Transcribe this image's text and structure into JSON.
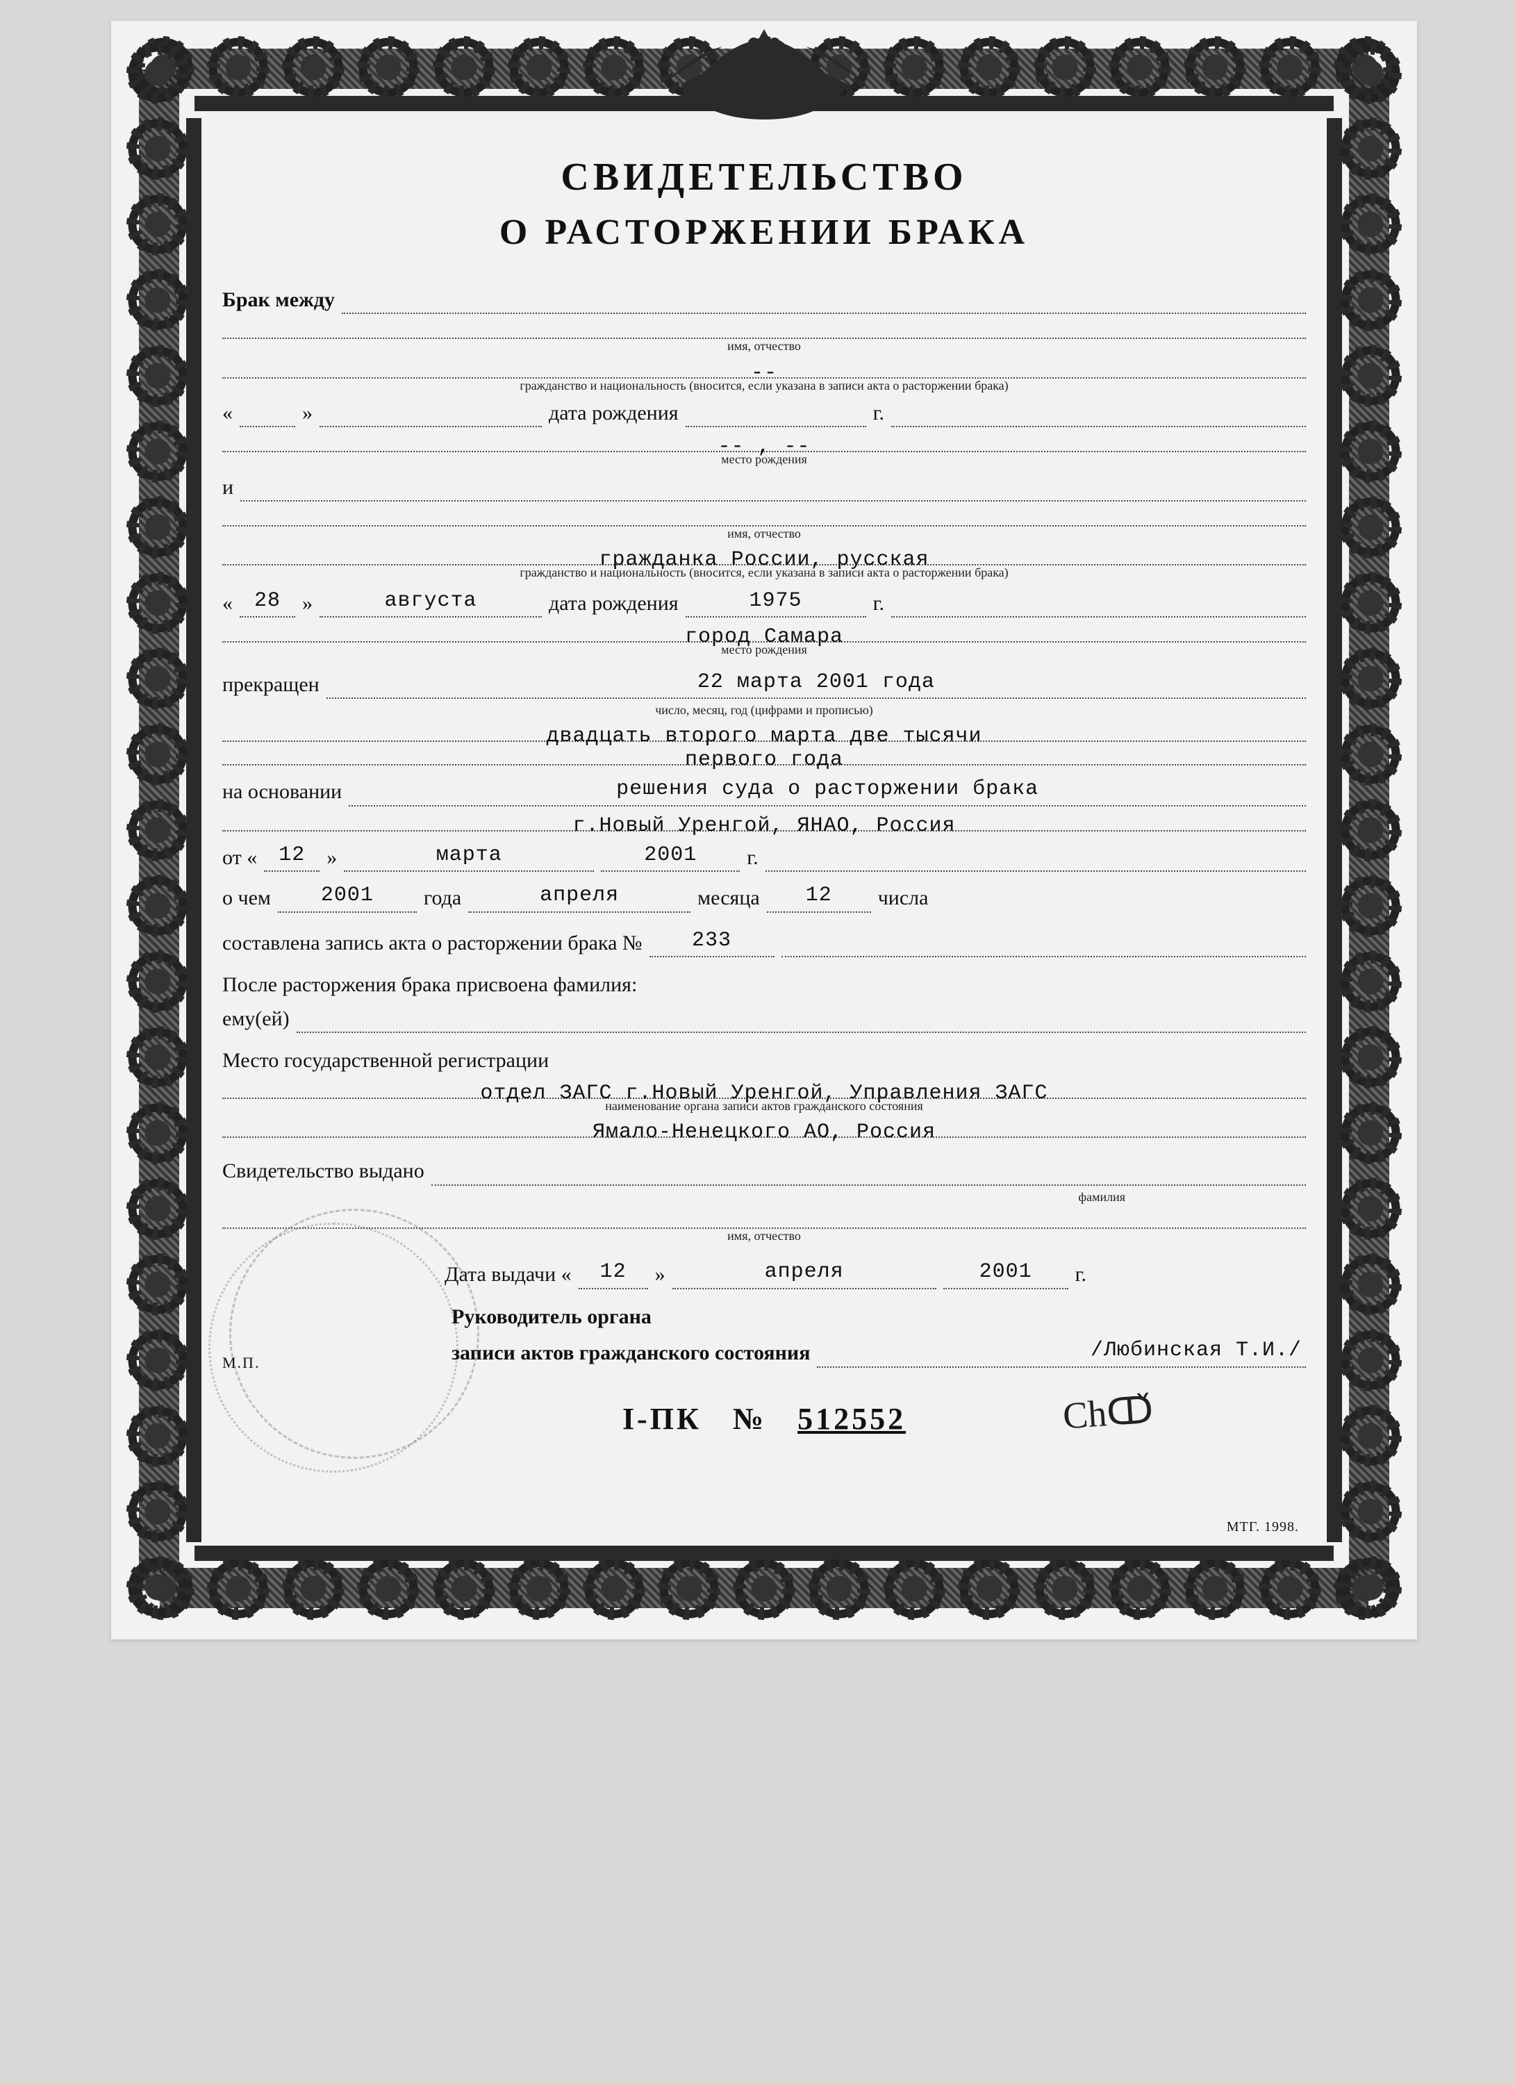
{
  "colors": {
    "ink": "#111111",
    "paper": "#d9d8d6",
    "form": "#f3f2f0",
    "dotted": "#4a4a4a",
    "ornament": "#1a1a1a"
  },
  "typography": {
    "title_fontsize_pt": 42,
    "subtitle_fontsize_pt": 39,
    "body_fontsize_pt": 22,
    "hint_fontsize_pt": 13,
    "series_fontsize_pt": 33,
    "body_font": "Times New Roman",
    "fill_font": "Courier New"
  },
  "title": "СВИДЕТЕЛЬСТВО",
  "subtitle": "О РАСТОРЖЕНИИ БРАКА",
  "labels": {
    "between": "Брак между",
    "name_patronymic_hint": "имя, отчество",
    "citizenship_hint": "гражданство и национальность (вносится, если указана в записи акта о расторжении брака)",
    "dob_label": "дата рождения",
    "pob_hint": "место рождения",
    "and": "и",
    "terminated": "прекращен",
    "date_words_hint": "число, месяц, год (цифрами и прописью)",
    "basis": "на основании",
    "from": "от «",
    "from_close": "»",
    "about_which": "о чем",
    "year_word": "года",
    "month_word": "месяца",
    "day_word": "числа",
    "record_line": "составлена запись акта о расторжении брака №",
    "surname_assigned": "После расторжения брака присвоена фамилия:",
    "him_her": "ему(ей)",
    "reg_place": "Место государственной регистрации",
    "reg_place_hint": "наименование органа записи актов гражданского состояния",
    "issued_to": "Свидетельство выдано",
    "surname_hint": "фамилия",
    "issue_date": "Дата выдачи «",
    "issue_date_close": "»",
    "mp": "М.П.",
    "head1": "Руководитель органа",
    "head2": "записи актов гражданского состояния",
    "g": "г.",
    "year_suffix": "г."
  },
  "party1": {
    "surname": "",
    "name_patronymic": "",
    "citizenship": "--",
    "dob_day": "",
    "dob_month": "",
    "dob_year": "",
    "pob": "-- , --"
  },
  "party2": {
    "surname": "",
    "name_patronymic": "",
    "citizenship": "гражданка России, русская",
    "dob_day": "28",
    "dob_month": "августа",
    "dob_year": "1975",
    "pob": "город Самара"
  },
  "terminated_date_numeric": "22 марта 2001 года",
  "terminated_date_words1": "двадцать второго марта две тысячи",
  "terminated_date_words2": "первого года",
  "basis_line1": "решения суда о расторжении брака",
  "basis_line2": "г.Новый Уренгой, ЯНАО, Россия",
  "decision": {
    "day": "12",
    "month": "марта",
    "year": "2001"
  },
  "record": {
    "year": "2001",
    "month": "апреля",
    "day": "12",
    "number": "233"
  },
  "assigned_surname": "",
  "registry1": "отдел ЗАГС г.Новый Уренгой, Управления ЗАГС",
  "registry2": "Ямало-Ненецкого АО, Россия",
  "issued_to_surname": "",
  "issued_to_name": "",
  "issue": {
    "day": "12",
    "month": "апреля",
    "year": "2001"
  },
  "registrar_name": "/Любинская Т.И./",
  "series": "I-ПК",
  "series_label": "№",
  "number": "512552",
  "footer_mark": "МТГ. 1998."
}
